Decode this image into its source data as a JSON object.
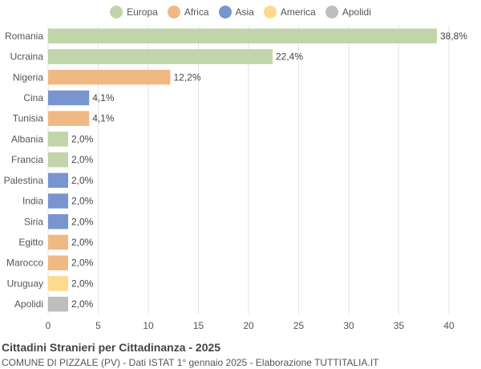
{
  "legend": [
    {
      "label": "Europa",
      "color": "#c2d4a9"
    },
    {
      "label": "Africa",
      "color": "#f0b984"
    },
    {
      "label": "Asia",
      "color": "#7895cf"
    },
    {
      "label": "America",
      "color": "#fed98e"
    },
    {
      "label": "Apolidi",
      "color": "#bebebe"
    }
  ],
  "chart_data": {
    "type": "bar",
    "orientation": "horizontal",
    "title": "Cittadini Stranieri per Cittadinanza - 2025",
    "subtitle": "COMUNE DI PIZZALE (PV) - Dati ISTAT 1° gennaio 2025 - Elaborazione TUTTITALIA.IT",
    "xlim": [
      0,
      40
    ],
    "xticks": [
      0,
      5,
      10,
      15,
      20,
      25,
      30,
      35,
      40
    ],
    "grid": true,
    "legend_position": "top",
    "categories": [
      "Romania",
      "Ucraina",
      "Nigeria",
      "Cina",
      "Tunisia",
      "Albania",
      "Francia",
      "Palestina",
      "India",
      "Siria",
      "Egitto",
      "Marocco",
      "Uruguay",
      "Apolidi"
    ],
    "values": [
      38.8,
      22.4,
      12.2,
      4.1,
      4.1,
      2.0,
      2.0,
      2.0,
      2.0,
      2.0,
      2.0,
      2.0,
      2.0,
      2.0
    ],
    "labels": [
      "38,8%",
      "22,4%",
      "12,2%",
      "4,1%",
      "4,1%",
      "2,0%",
      "2,0%",
      "2,0%",
      "2,0%",
      "2,0%",
      "2,0%",
      "2,0%",
      "2,0%",
      "2,0%"
    ],
    "groups": [
      "Europa",
      "Europa",
      "Africa",
      "Asia",
      "Africa",
      "Europa",
      "Europa",
      "Asia",
      "Asia",
      "Asia",
      "Africa",
      "Africa",
      "America",
      "Apolidi"
    ]
  }
}
